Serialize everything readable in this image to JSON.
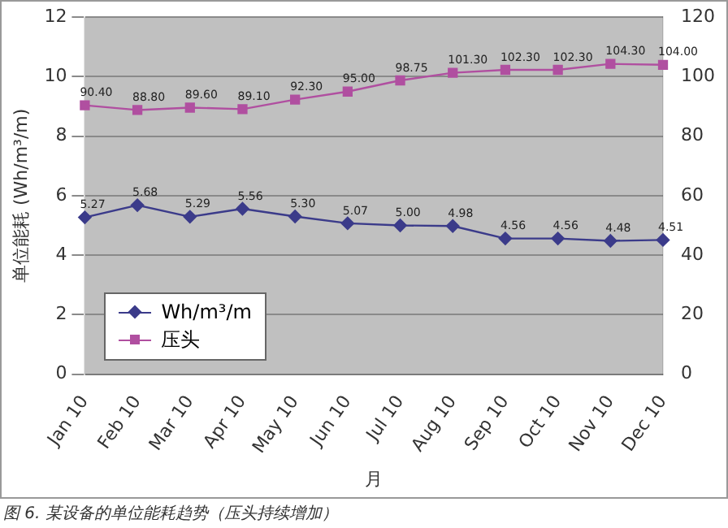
{
  "chart_data": {
    "type": "line",
    "xlabel": "月",
    "ylabel": "单位能耗 (Wh/m³/m)",
    "categories": [
      "Jan 10",
      "Feb 10",
      "Mar 10",
      "Apr 10",
      "May 10",
      "Jun 10",
      "Jul 10",
      "Aug 10",
      "Sep 10",
      "Oct 10",
      "Nov 10",
      "Dec 10"
    ],
    "series": [
      {
        "name": "Wh/m³/m",
        "color": "#3b3b8a",
        "marker": "diamond",
        "values": [
          5.27,
          5.68,
          5.29,
          5.56,
          5.3,
          5.07,
          5.0,
          4.98,
          4.56,
          4.56,
          4.48,
          4.51
        ],
        "value_labels": [
          "5.27",
          "5.68",
          "5.29",
          "5.56",
          "5.30",
          "5.07",
          "5.00",
          "4.98",
          "4.56",
          "4.56",
          "4.48",
          "4.51"
        ]
      },
      {
        "name": "压头",
        "color": "#b04fa0",
        "marker": "square",
        "axis": "y2",
        "values": [
          90.4,
          88.8,
          89.6,
          89.1,
          92.3,
          95.0,
          98.75,
          101.3,
          102.3,
          102.3,
          104.3,
          104.0
        ],
        "value_labels": [
          "90.40",
          "88.80",
          "89.60",
          "89.10",
          "92.30",
          "95.00",
          "98.75",
          "101.30",
          "102.30",
          "102.30",
          "104.30",
          "104.00"
        ]
      }
    ],
    "ylim": [
      0,
      12
    ],
    "yticks": [
      0,
      2,
      4,
      6,
      8,
      10,
      12
    ],
    "y2lim": [
      0,
      120
    ],
    "y2ticks": [
      0,
      20,
      40,
      60,
      80,
      100,
      120
    ],
    "grid": "y",
    "legend": "bottom left",
    "annotations": [
      "图 6. 某设备的单位能耗趋势（压头持续增加）"
    ]
  }
}
